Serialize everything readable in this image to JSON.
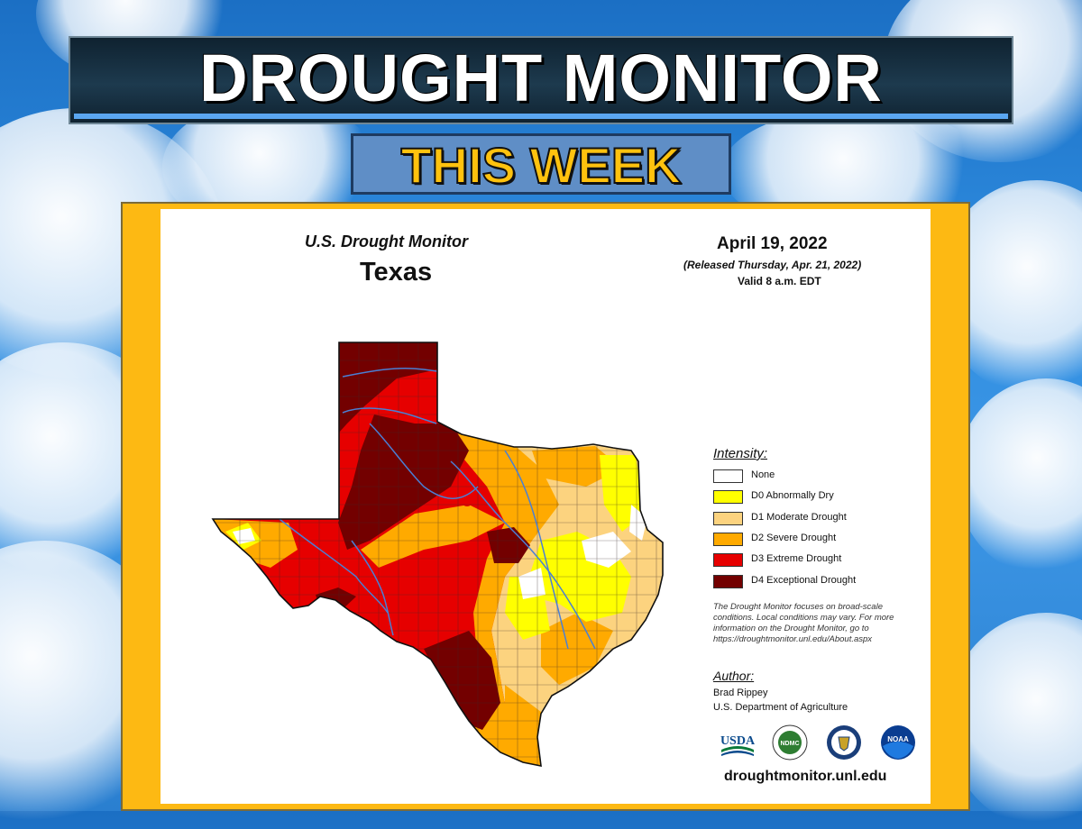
{
  "banner": {
    "title": "DROUGHT MONITOR",
    "subtitle": "THIS WEEK"
  },
  "map": {
    "product": "U.S. Drought Monitor",
    "region": "Texas",
    "date": "April 19, 2022",
    "released": "(Released Thursday, Apr. 21, 2022)",
    "valid": "Valid 8 a.m. EDT"
  },
  "legend": {
    "title": "Intensity:",
    "items": [
      {
        "label": "None",
        "color": "#ffffff"
      },
      {
        "label": "D0 Abnormally Dry",
        "color": "#ffff00"
      },
      {
        "label": "D1 Moderate Drought",
        "color": "#fcd37f"
      },
      {
        "label": "D2 Severe Drought",
        "color": "#ffaa00"
      },
      {
        "label": "D3 Extreme Drought",
        "color": "#e60000"
      },
      {
        "label": "D4 Exceptional Drought",
        "color": "#730000"
      }
    ],
    "note": "The Drought Monitor focuses on broad-scale conditions. Local conditions may vary. For more information on the Drought Monitor, go to https://droughtmonitor.unl.edu/About.aspx"
  },
  "author": {
    "title": "Author:",
    "name": "Brad Rippey",
    "org": "U.S. Department of Agriculture"
  },
  "logos": [
    {
      "name": "usda-logo",
      "text": "USDA"
    },
    {
      "name": "ndmc-logo",
      "text": "NDMC"
    },
    {
      "name": "doc-seal-logo",
      "text": ""
    },
    {
      "name": "noaa-logo",
      "text": "NOAA"
    }
  ],
  "website": "droughtmonitor.unl.edu"
}
